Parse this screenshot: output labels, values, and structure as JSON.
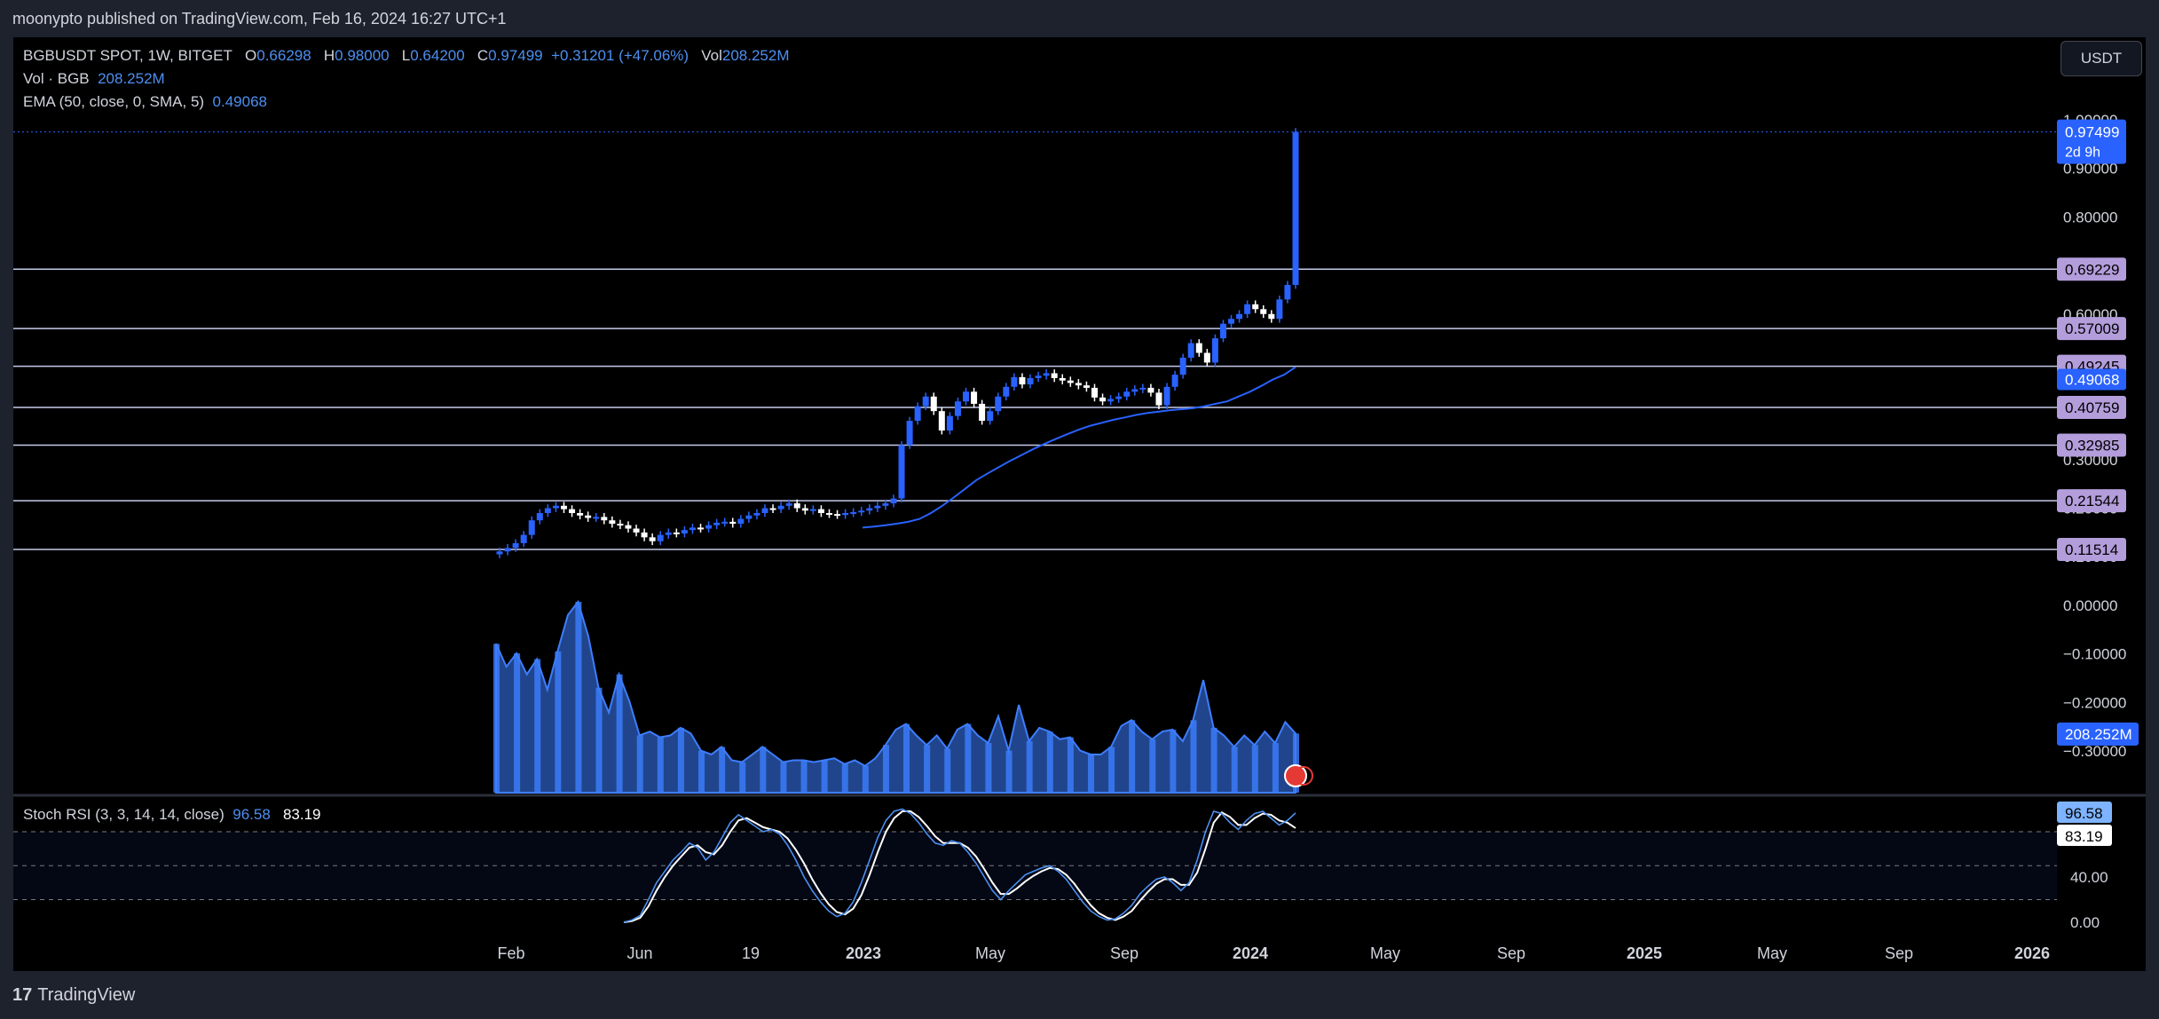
{
  "header": {
    "published": "moonypto published on TradingView.com, Feb 16, 2024 16:27 UTC+1"
  },
  "legend": {
    "symbol": "BGBUSDT SPOT, 1W, BITGET",
    "o_label": "O",
    "o_value": "0.66298",
    "h_label": "H",
    "h_value": "0.98000",
    "l_label": "L",
    "l_value": "0.64200",
    "c_label": "C",
    "c_value": "0.97499",
    "change": "+0.31201 (+47.06%)",
    "vol_label": "Vol",
    "vol_value": "208.252M",
    "vol_line_label": "Vol · BGB",
    "vol_line_value": "208.252M",
    "ema_label": "EMA (50, close, 0, SMA, 5)",
    "ema_value": "0.49068",
    "stoch_label": "Stoch RSI (3, 3, 14, 14, close)",
    "stoch_k": "96.58",
    "stoch_d": "83.19"
  },
  "toolbar": {
    "currency": "USDT"
  },
  "footer": {
    "brand": "TradingView",
    "logo_mark": "17"
  },
  "colors": {
    "up": "#2962ff",
    "down": "#ffffff",
    "ema": "#2962ff",
    "volume": "#3d7eff",
    "level": "#b39ddb",
    "background": "#000000"
  },
  "chart_data": [
    {
      "type": "candlestick",
      "x_ticks": [
        "Feb",
        "Jun",
        "19",
        "2023",
        "May",
        "Sep",
        "2024",
        "May",
        "Sep",
        "2025",
        "May",
        "Sep",
        "2026"
      ],
      "y_ticks": [
        "1.00000",
        "0.90000",
        "0.80000",
        "0.70000",
        "0.60000",
        "0.50000",
        "0.40000",
        "0.30000",
        "0.20000",
        "0.10000",
        "0.00000",
        "−0.10000",
        "−0.20000",
        "−0.30000"
      ],
      "ylim": [
        -0.38,
        1.0
      ],
      "price_labels": {
        "last": "0.97499",
        "countdown": "2d 9h",
        "ema": "0.49068",
        "volume": "208.252M"
      },
      "levels": [
        "0.69229",
        "0.57009",
        "0.49245",
        "0.40759",
        "0.32985",
        "0.21544",
        "0.11514"
      ],
      "closes": [
        0.111,
        0.118,
        0.128,
        0.145,
        0.175,
        0.19,
        0.2,
        0.205,
        0.198,
        0.19,
        0.185,
        0.18,
        0.182,
        0.175,
        0.168,
        0.165,
        0.158,
        0.15,
        0.14,
        0.132,
        0.145,
        0.15,
        0.148,
        0.155,
        0.16,
        0.158,
        0.165,
        0.17,
        0.172,
        0.168,
        0.178,
        0.185,
        0.19,
        0.2,
        0.198,
        0.205,
        0.21,
        0.2,
        0.195,
        0.198,
        0.19,
        0.188,
        0.186,
        0.19,
        0.192,
        0.195,
        0.2,
        0.205,
        0.21,
        0.22,
        0.33,
        0.38,
        0.41,
        0.43,
        0.4,
        0.36,
        0.39,
        0.42,
        0.44,
        0.415,
        0.38,
        0.4,
        0.43,
        0.45,
        0.47,
        0.455,
        0.468,
        0.473,
        0.478,
        0.468,
        0.463,
        0.458,
        0.453,
        0.448,
        0.428,
        0.42,
        0.425,
        0.43,
        0.44,
        0.445,
        0.448,
        0.438,
        0.412,
        0.45,
        0.475,
        0.51,
        0.54,
        0.52,
        0.5,
        0.55,
        0.58,
        0.59,
        0.6,
        0.62,
        0.61,
        0.6,
        0.59,
        0.63,
        0.66,
        0.97499
      ],
      "ema": [
        0.16,
        0.162,
        0.165,
        0.168,
        0.172,
        0.178,
        0.19,
        0.205,
        0.222,
        0.24,
        0.258,
        0.272,
        0.285,
        0.298,
        0.31,
        0.322,
        0.333,
        0.343,
        0.353,
        0.362,
        0.37,
        0.376,
        0.382,
        0.387,
        0.392,
        0.396,
        0.399,
        0.402,
        0.404,
        0.406,
        0.41,
        0.415,
        0.42,
        0.43,
        0.44,
        0.452,
        0.465,
        0.475,
        0.49068
      ],
      "volume_rel": [
        0.78,
        0.66,
        0.73,
        0.62,
        0.7,
        0.54,
        0.74,
        0.93,
        1.0,
        0.82,
        0.55,
        0.42,
        0.62,
        0.48,
        0.3,
        0.32,
        0.29,
        0.3,
        0.34,
        0.31,
        0.22,
        0.2,
        0.24,
        0.17,
        0.16,
        0.2,
        0.24,
        0.2,
        0.16,
        0.17,
        0.17,
        0.16,
        0.17,
        0.18,
        0.15,
        0.17,
        0.14,
        0.18,
        0.25,
        0.33,
        0.36,
        0.3,
        0.25,
        0.3,
        0.23,
        0.33,
        0.36,
        0.3,
        0.26,
        0.4,
        0.22,
        0.46,
        0.27,
        0.34,
        0.32,
        0.28,
        0.29,
        0.22,
        0.2,
        0.2,
        0.24,
        0.35,
        0.38,
        0.32,
        0.28,
        0.32,
        0.33,
        0.27,
        0.38,
        0.59,
        0.34,
        0.3,
        0.24,
        0.3,
        0.25,
        0.32,
        0.26,
        0.37,
        0.31
      ],
      "volume_xlim": [
        0,
        1
      ]
    },
    {
      "type": "line",
      "name": "Stoch RSI",
      "y_ticks": [
        "40.00",
        "0.00"
      ],
      "band": [
        20,
        80
      ],
      "ylim": [
        -10,
        105
      ],
      "labels": {
        "k": "96.58",
        "d": "83.19"
      },
      "k": [
        0,
        2,
        6,
        20,
        35,
        45,
        55,
        62,
        70,
        66,
        55,
        62,
        75,
        88,
        95,
        90,
        85,
        80,
        82,
        78,
        68,
        55,
        40,
        28,
        18,
        10,
        5,
        8,
        18,
        35,
        55,
        75,
        90,
        98,
        100,
        96,
        88,
        78,
        70,
        68,
        72,
        70,
        62,
        52,
        40,
        28,
        20,
        28,
        35,
        42,
        45,
        48,
        50,
        45,
        38,
        28,
        18,
        10,
        5,
        2,
        3,
        8,
        15,
        25,
        32,
        38,
        40,
        35,
        28,
        35,
        55,
        80,
        98,
        96,
        88,
        82,
        90,
        96,
        98,
        92,
        86,
        90,
        96.58
      ],
      "d": [
        0,
        1,
        4,
        14,
        28,
        40,
        50,
        58,
        66,
        68,
        62,
        60,
        68,
        80,
        90,
        92,
        88,
        84,
        82,
        80,
        74,
        64,
        52,
        38,
        26,
        16,
        9,
        7,
        12,
        24,
        42,
        62,
        80,
        92,
        98,
        98,
        93,
        85,
        76,
        70,
        70,
        70,
        66,
        58,
        47,
        35,
        25,
        25,
        30,
        36,
        41,
        45,
        48,
        47,
        42,
        34,
        24,
        15,
        8,
        4,
        2,
        5,
        10,
        19,
        27,
        34,
        38,
        38,
        33,
        33,
        44,
        65,
        88,
        97,
        93,
        86,
        86,
        92,
        96,
        95,
        90,
        88,
        83.19
      ]
    }
  ]
}
